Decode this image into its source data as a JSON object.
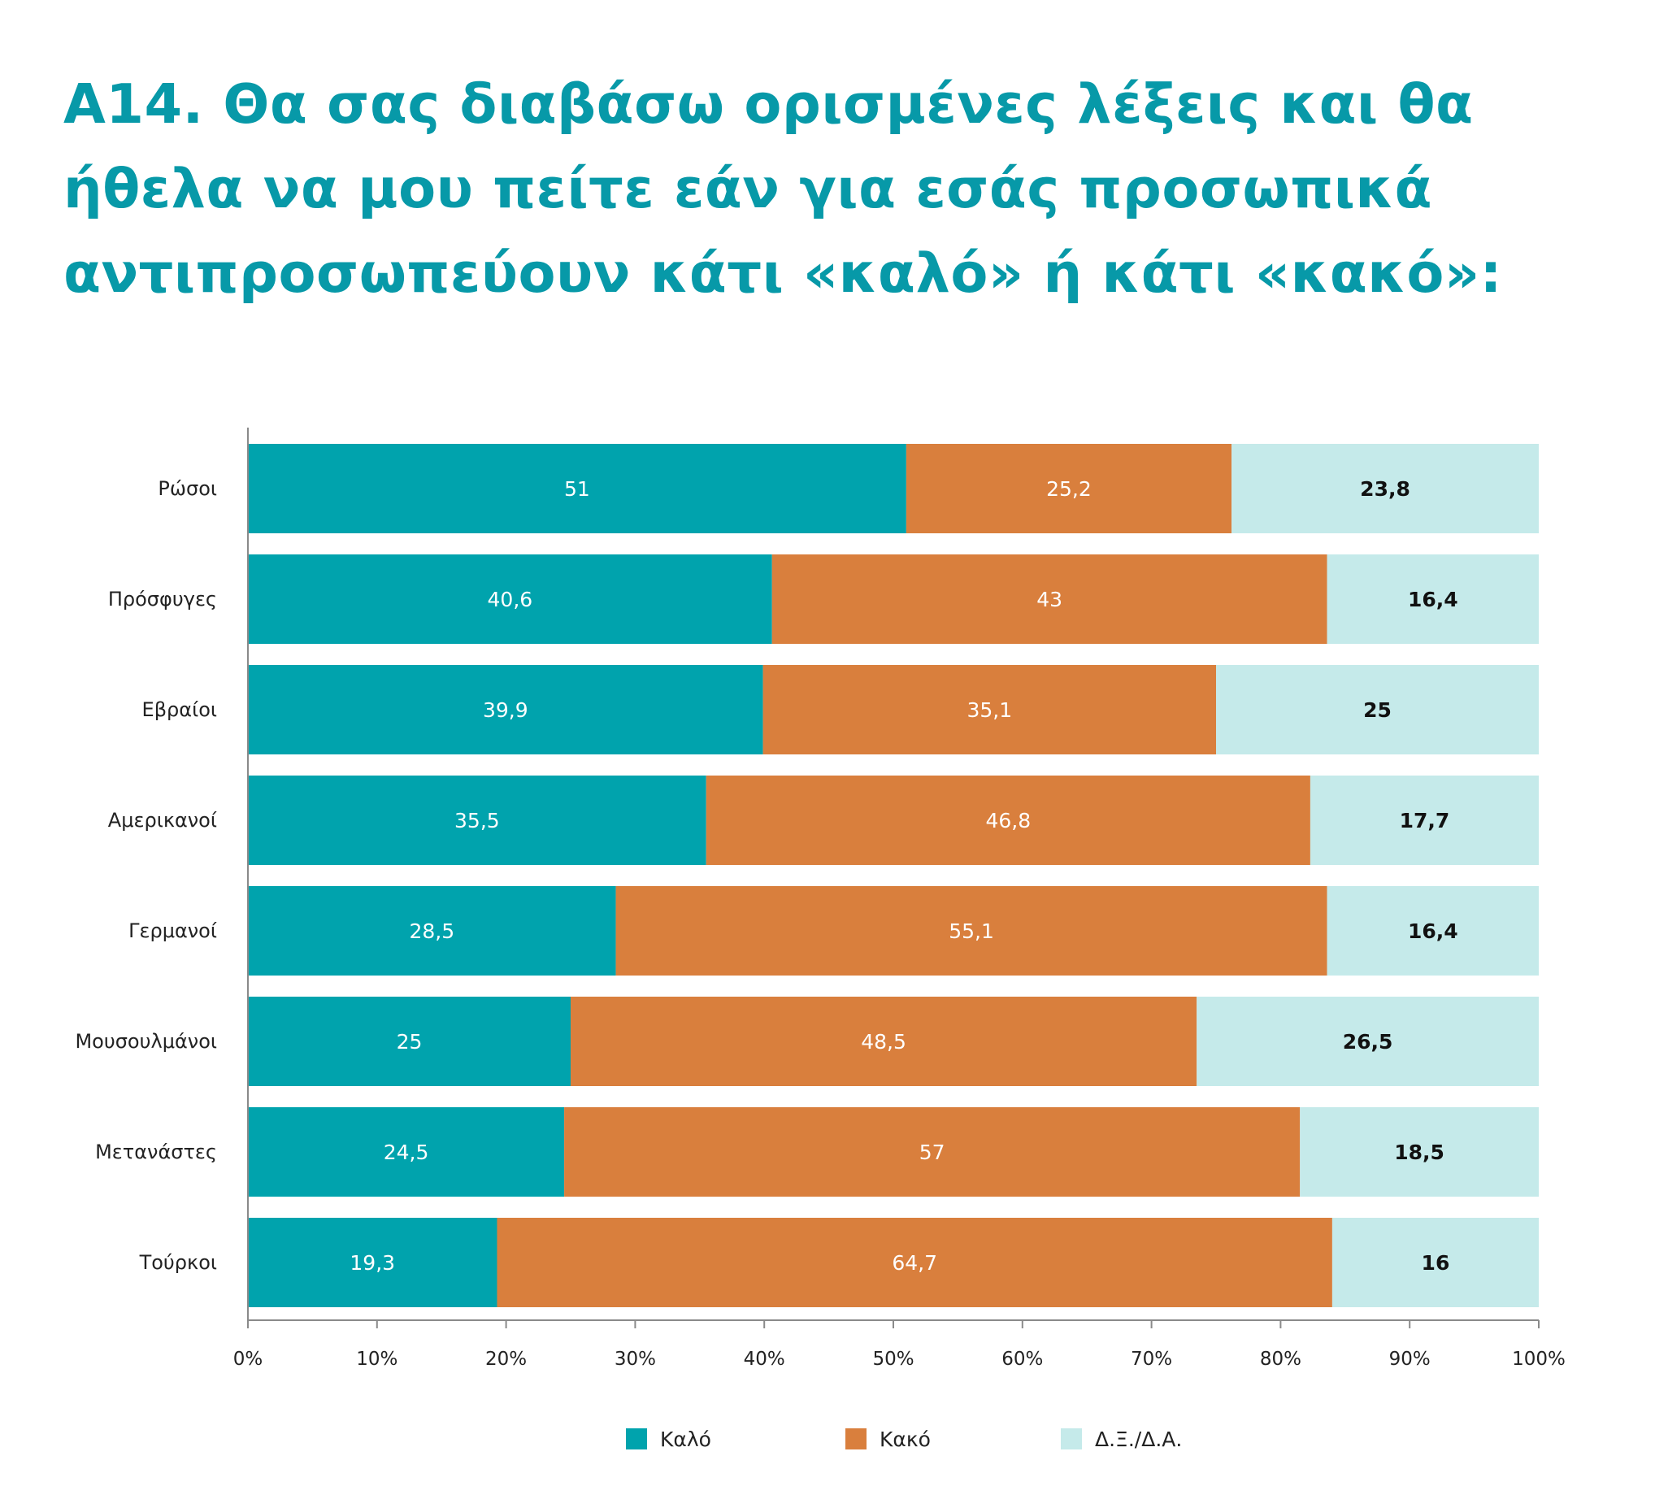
{
  "title_lines": [
    "Α14. Θα σας διαβάσω ορισμένες λέξεις και θα",
    "ήθελα να μου πείτε εάν για εσάς προσωπικά",
    "αντιπροσωπεύουν κάτι «καλό» ή κάτι «κακό»:"
  ],
  "colors": {
    "title": "#0799a8",
    "axis": "#8a8a8a",
    "label_text": "#222222"
  },
  "chart_data": {
    "type": "bar",
    "orientation": "horizontal",
    "stacked": "percent",
    "categories": [
      "Ρώσοι",
      "Πρόσφυγες",
      "Εβραίοι",
      "Αμερικανοί",
      "Γερμανοί",
      "Μουσουλμάνοι",
      "Μετανάστες",
      "Τούρκοι"
    ],
    "series": [
      {
        "name": "Καλό",
        "color": "#00a3ad",
        "label_color": "#ffffff",
        "label_weight": "normal",
        "values": [
          51,
          40.6,
          39.9,
          35.5,
          28.5,
          25,
          24.5,
          19.3
        ],
        "value_labels": [
          "51",
          "40,6",
          "39,9",
          "35,5",
          "28,5",
          "25",
          "24,5",
          "19,3"
        ]
      },
      {
        "name": "Κακό",
        "color": "#d97f3d",
        "label_color": "#ffffff",
        "label_weight": "normal",
        "values": [
          25.2,
          43,
          35.1,
          46.8,
          55.1,
          48.5,
          57,
          64.7
        ],
        "value_labels": [
          "25,2",
          "43",
          "35,1",
          "46,8",
          "55,1",
          "48,5",
          "57",
          "64,7"
        ]
      },
      {
        "name": "Δ.Ξ./Δ.Α.",
        "color": "#c5eaea",
        "label_color": "#111111",
        "label_weight": "bold",
        "values": [
          23.8,
          16.4,
          25,
          17.7,
          16.4,
          26.5,
          18.5,
          16
        ],
        "value_labels": [
          "23,8",
          "16,4",
          "25",
          "17,7",
          "16,4",
          "26,5",
          "18,5",
          "16"
        ]
      }
    ],
    "xlim": [
      0,
      100
    ],
    "x_ticks": [
      0,
      10,
      20,
      30,
      40,
      50,
      60,
      70,
      80,
      90,
      100
    ],
    "x_tick_labels": [
      "0%",
      "10%",
      "20%",
      "30%",
      "40%",
      "50%",
      "60%",
      "70%",
      "80%",
      "90%",
      "100%"
    ],
    "grid": false,
    "legend_position": "bottom"
  }
}
